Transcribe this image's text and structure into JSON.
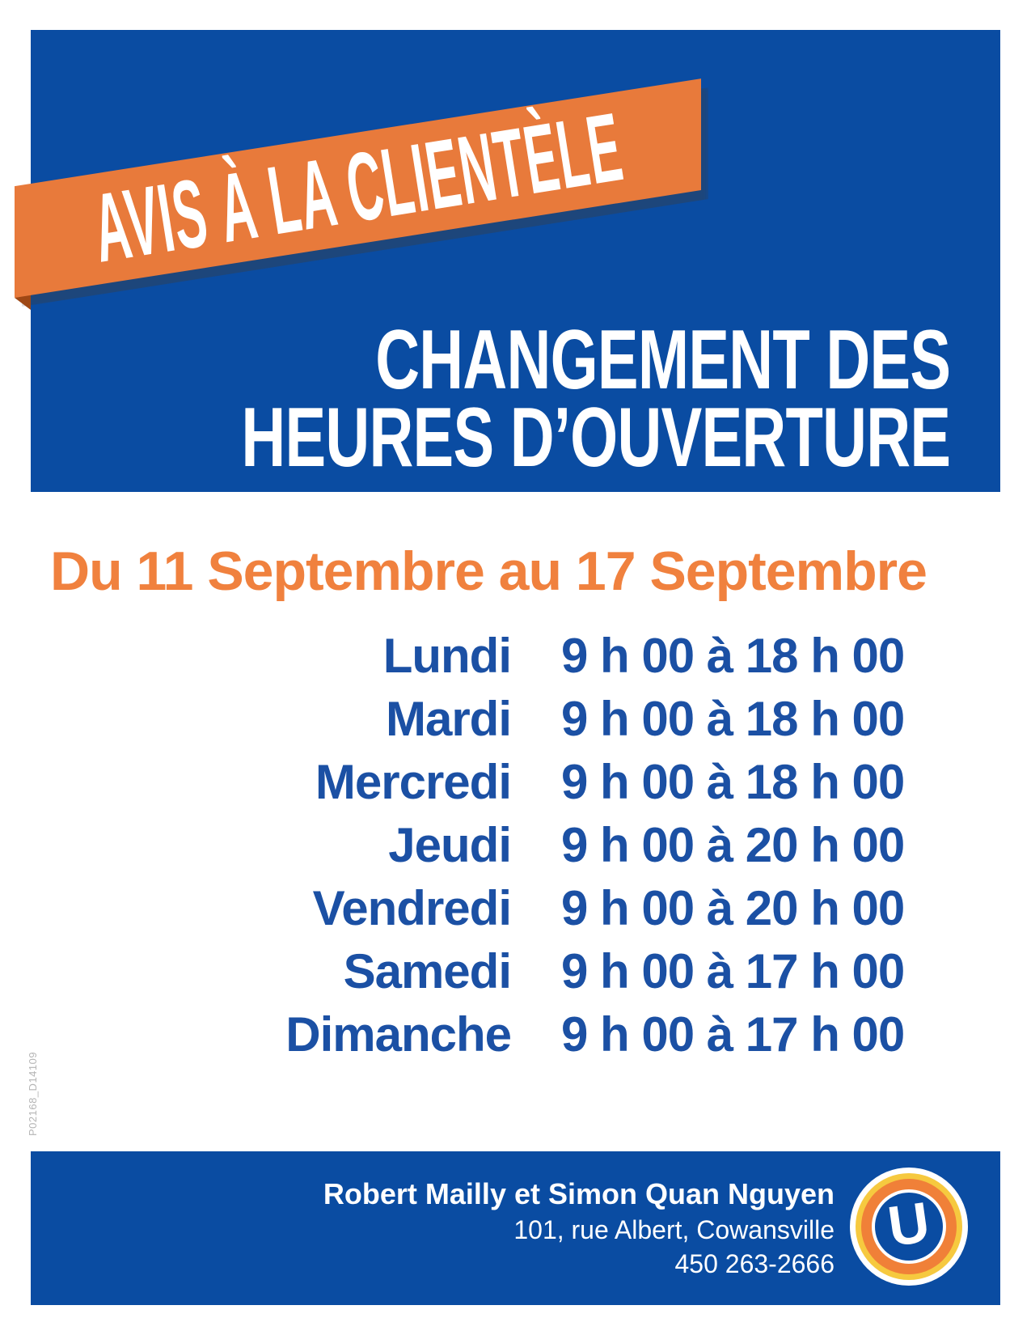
{
  "banner": {
    "label": "AVIS À LA CLIENTÈLE"
  },
  "header": {
    "title_line1": "CHANGEMENT DES",
    "title_line2": "HEURES D’OUVERTURE"
  },
  "date_range": "Du 11 Septembre au 17 Septembre",
  "schedule": [
    {
      "day": "Lundi",
      "hours": "9 h 00 à 18 h 00"
    },
    {
      "day": "Mardi",
      "hours": "9 h 00 à 18 h 00"
    },
    {
      "day": "Mercredi",
      "hours": "9 h 00 à 18 h 00"
    },
    {
      "day": "Jeudi",
      "hours": "9 h 00 à 20 h 00"
    },
    {
      "day": "Vendredi",
      "hours": "9 h 00 à 20 h 00"
    },
    {
      "day": "Samedi",
      "hours": "9 h 00 à 17 h 00"
    },
    {
      "day": "Dimanche",
      "hours": "9 h 00 à 17 h 00"
    }
  ],
  "footer": {
    "names": "Robert Mailly et Simon Quan Nguyen",
    "address": "101, rue Albert, Cowansville",
    "phone": "450 263-2666",
    "logo_letter": "U"
  },
  "doc_code": "P02168_D14109",
  "colors": {
    "panel_blue": "#0A4CA2",
    "text_blue": "#1B50A4",
    "banner_orange": "#E87A3B",
    "date_orange": "#F0813E",
    "fold_brown": "#9E4815",
    "logo_orange": "#F08038",
    "logo_yellow": "#F6C93F",
    "code_gray": "#B5B5B5"
  }
}
